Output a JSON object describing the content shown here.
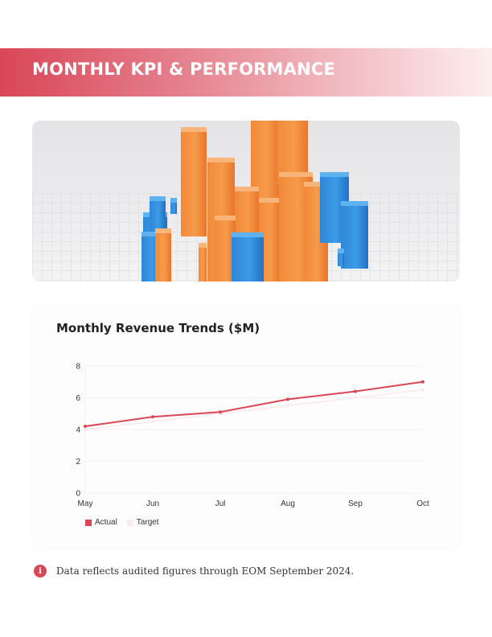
{
  "header": {
    "title": "MONTHLY KPI & PERFORMANCE"
  },
  "hero": {
    "alt": "3D orange and blue bar chart illustration"
  },
  "chart_card": {
    "title": "Monthly Revenue Trends ($M)",
    "legend": [
      {
        "label": "Actual",
        "color": "#d94657"
      },
      {
        "label": "Target",
        "color": "#fbe9eb"
      }
    ]
  },
  "chart_data": {
    "type": "line",
    "title": "Monthly Revenue Trends ($M)",
    "categories": [
      "May",
      "Jun",
      "Jul",
      "Aug",
      "Sep",
      "Oct"
    ],
    "series": [
      {
        "name": "Actual",
        "values": [
          4.2,
          4.8,
          5.1,
          5.9,
          6.4,
          7.0
        ],
        "color": "#d94657"
      },
      {
        "name": "Target",
        "values": [
          4.0,
          4.5,
          5.0,
          5.5,
          6.0,
          6.5
        ],
        "color": "#fbe9eb"
      }
    ],
    "xlabel": "",
    "ylabel": "",
    "ylim": [
      0,
      8
    ],
    "yticks": [
      0,
      2,
      4,
      6,
      8
    ],
    "grid": true,
    "legend_position": "bottom-left"
  },
  "note": {
    "icon": "info-icon",
    "text": "Data reflects audited figures through EOM September 2024."
  }
}
